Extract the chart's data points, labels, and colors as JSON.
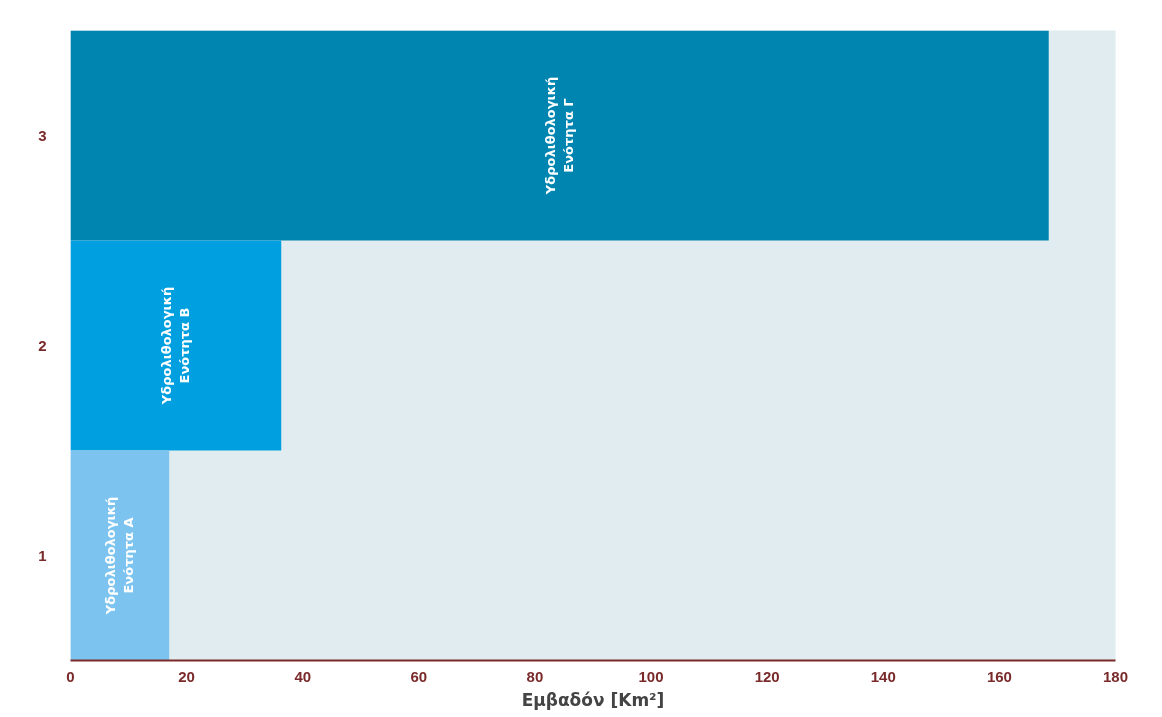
{
  "chart_data": {
    "type": "bar",
    "orientation": "horizontal",
    "categories": [
      "3",
      "2",
      "1"
    ],
    "values": [
      168.5,
      36.3,
      17
    ],
    "colors": [
      "#0085b0",
      "#00a0e0",
      "#7cc4ef"
    ],
    "xlabel": "Εμβαδόν [Km²]",
    "xlim": [
      0,
      180
    ],
    "xticks": [
      0,
      20,
      40,
      60,
      80,
      100,
      120,
      140,
      160,
      180
    ],
    "annotations": [
      "Υδρολιθολογική\nΕνότητα Γ",
      "Υδρολιθολογική\nΕνότητα Β",
      "Υδρολιθολογική\nΕνότητα Α"
    ],
    "grid": false
  }
}
